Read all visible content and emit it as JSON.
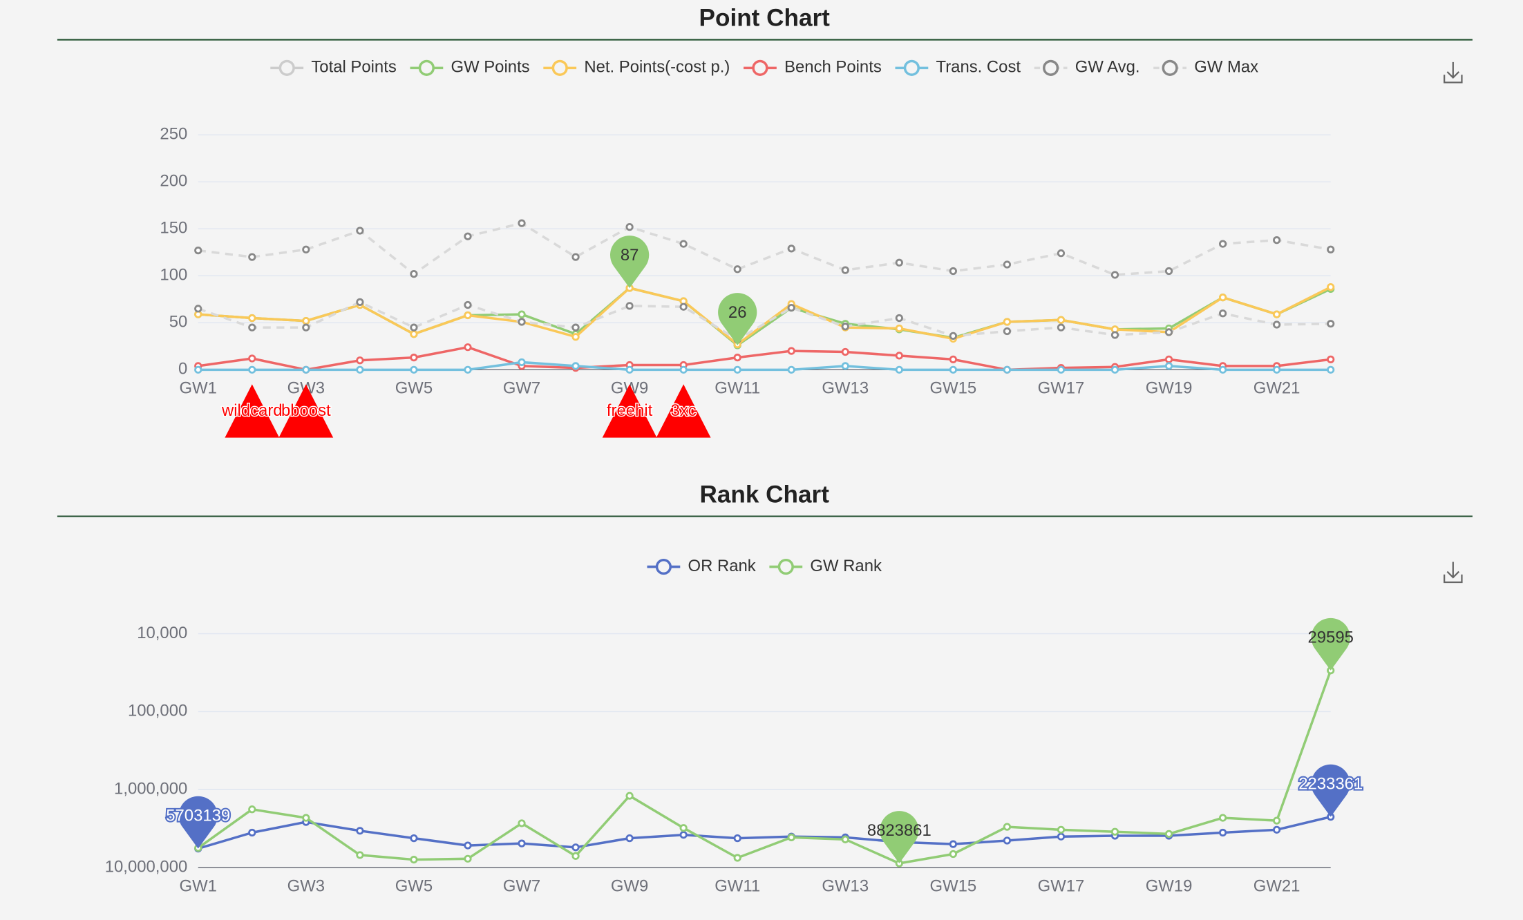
{
  "chart_data": [
    {
      "type": "line",
      "title": "Point Chart",
      "categories": [
        "GW1",
        null,
        "GW3",
        null,
        "GW5",
        null,
        "GW7",
        null,
        "GW9",
        null,
        "GW11",
        null,
        "GW13",
        null,
        "GW15",
        null,
        "GW17",
        null,
        "GW19",
        null,
        "GW21",
        null
      ],
      "ylim": [
        0,
        250
      ],
      "yticks": [
        0,
        50,
        100,
        150,
        200,
        250
      ],
      "grid": true,
      "series": [
        {
          "name": "Total Points",
          "color": "#cccccc",
          "selected": false
        },
        {
          "name": "GW Points",
          "color": "#91cc75",
          "mark_points": [
            "max",
            "min"
          ],
          "pin_label_color": "#333333",
          "values": [
            59,
            55,
            52,
            69,
            38,
            58,
            59,
            38,
            87,
            73,
            26,
            66,
            49,
            43,
            34,
            51,
            53,
            43,
            44,
            77,
            59,
            86
          ]
        },
        {
          "name": "Net. Points(-cost p.)",
          "color": "#fac858",
          "values": [
            59,
            55,
            52,
            69,
            38,
            58,
            51,
            35,
            87,
            73,
            27,
            70,
            45,
            44,
            33,
            51,
            53,
            43,
            40,
            77,
            59,
            88
          ]
        },
        {
          "name": "Bench Points",
          "color": "#ee6666",
          "values": [
            4,
            12,
            0,
            10,
            13,
            24,
            4,
            2,
            5,
            5,
            13,
            20,
            19,
            15,
            11,
            0,
            2,
            3,
            11,
            4,
            4,
            11
          ]
        },
        {
          "name": "Trans. Cost",
          "color": "#73c0de",
          "values": [
            0,
            0,
            0,
            0,
            0,
            0,
            8,
            4,
            0,
            0,
            0,
            0,
            4,
            0,
            0,
            0,
            0,
            0,
            4,
            0,
            0,
            0
          ]
        },
        {
          "name": "GW Avg.",
          "color": "#888888",
          "line_color": "#d9d9d9",
          "dashed": true,
          "values": [
            65,
            45,
            45,
            72,
            45,
            69,
            51,
            45,
            68,
            67,
            32,
            66,
            46,
            55,
            36,
            41,
            45,
            37,
            40,
            60,
            48,
            49
          ]
        },
        {
          "name": "GW Max",
          "color": "#888888",
          "line_color": "#d9d9d9",
          "dashed": true,
          "values": [
            127,
            120,
            128,
            148,
            102,
            142,
            156,
            120,
            152,
            134,
            107,
            129,
            106,
            114,
            105,
            112,
            124,
            101,
            105,
            134,
            138,
            128
          ]
        }
      ],
      "chips": [
        null,
        "wildcard",
        "bboost",
        null,
        null,
        null,
        null,
        null,
        "freehit",
        "3xc",
        null,
        null,
        null,
        null,
        null,
        null,
        null,
        null,
        null,
        null,
        null,
        null
      ]
    },
    {
      "type": "line",
      "title": "Rank Chart",
      "categories": [
        "GW1",
        null,
        "GW3",
        null,
        "GW5",
        null,
        "GW7",
        null,
        "GW9",
        null,
        "GW11",
        null,
        "GW13",
        null,
        "GW15",
        null,
        "GW17",
        null,
        "GW19",
        null,
        "GW21",
        null
      ],
      "log": true,
      "ylim": [
        10000000,
        10000
      ],
      "yticks": [
        {
          "value": 10000000,
          "label": "10,000,000"
        },
        {
          "value": 1000000,
          "label": "1,000,000"
        },
        {
          "value": 100000,
          "label": "100,000"
        },
        {
          "value": 10000,
          "label": "10,000"
        }
      ],
      "grid": true,
      "series": [
        {
          "name": "OR Rank",
          "color": "#5470c6",
          "mark_points": [
            "max",
            "min"
          ],
          "pin_label_color": "#ffffff",
          "values": [
            5703139,
            3560000,
            2600000,
            3370000,
            4200000,
            5200000,
            4900000,
            5500000,
            4200000,
            3800000,
            4200000,
            4000000,
            4100000,
            4700000,
            5000000,
            4500000,
            4000000,
            3900000,
            3900000,
            3560000,
            3270000,
            2233361
          ]
        },
        {
          "name": "GW Rank",
          "color": "#91cc75",
          "mark_points": [
            "max",
            "min"
          ],
          "pin_label_color": "#333333",
          "values": [
            5600000,
            1790000,
            2300000,
            6900000,
            7900000,
            7700000,
            2700000,
            7100000,
            1200000,
            3100000,
            7500000,
            4100000,
            4350000,
            8823861,
            6700000,
            3000000,
            3270000,
            3470000,
            3700000,
            2300000,
            2500000,
            29595
          ]
        }
      ]
    }
  ]
}
